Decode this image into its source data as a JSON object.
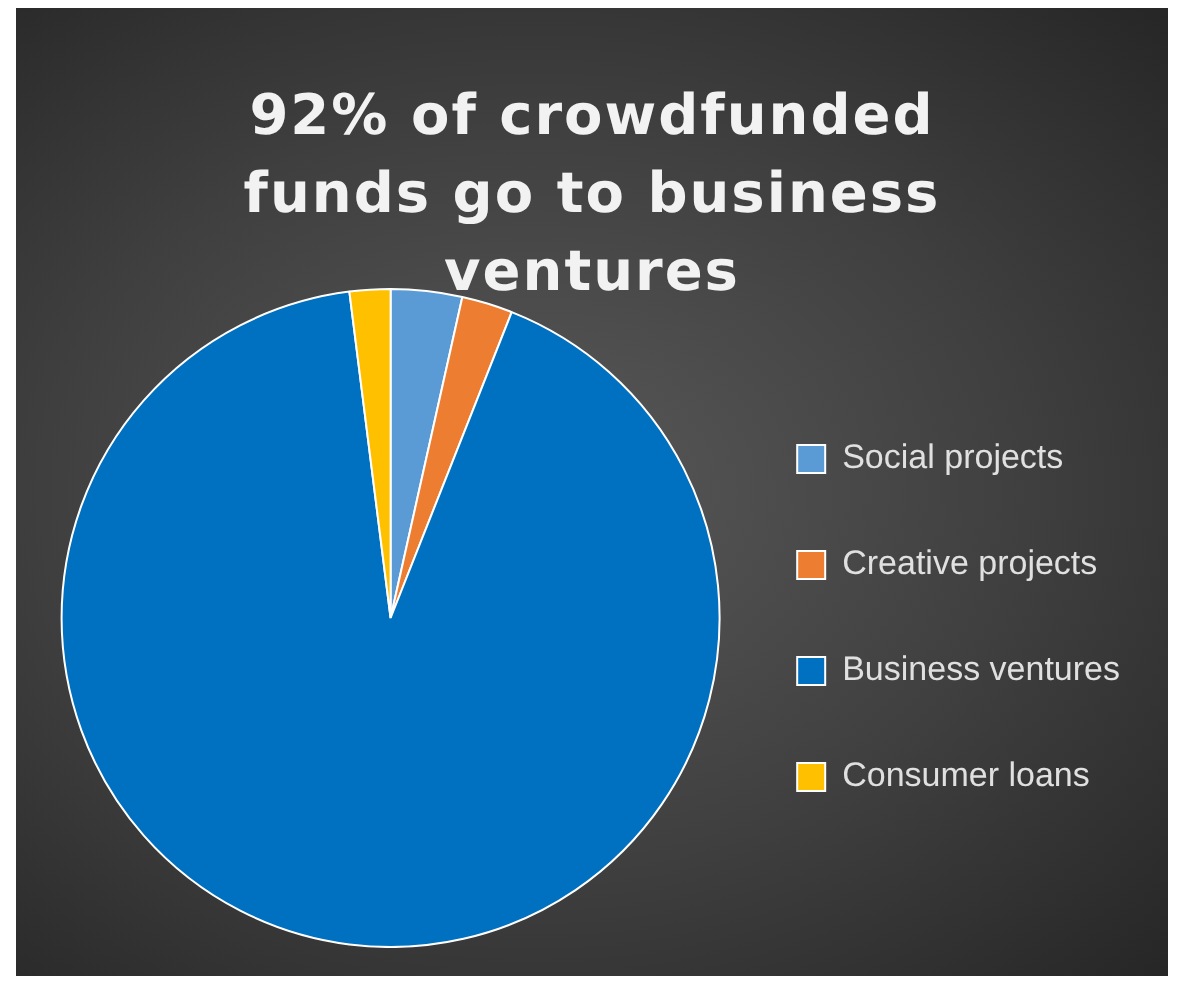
{
  "chart_data": {
    "type": "pie",
    "title": "92% of crowdfunded funds go to business ventures",
    "categories": [
      "Social projects",
      "Creative projects",
      "Business ventures",
      "Consumer loans"
    ],
    "values": [
      3.5,
      2.5,
      92,
      2
    ],
    "colors": [
      "#5b9bd5",
      "#ed7d31",
      "#0070c0",
      "#ffc000"
    ],
    "legend": "right"
  }
}
